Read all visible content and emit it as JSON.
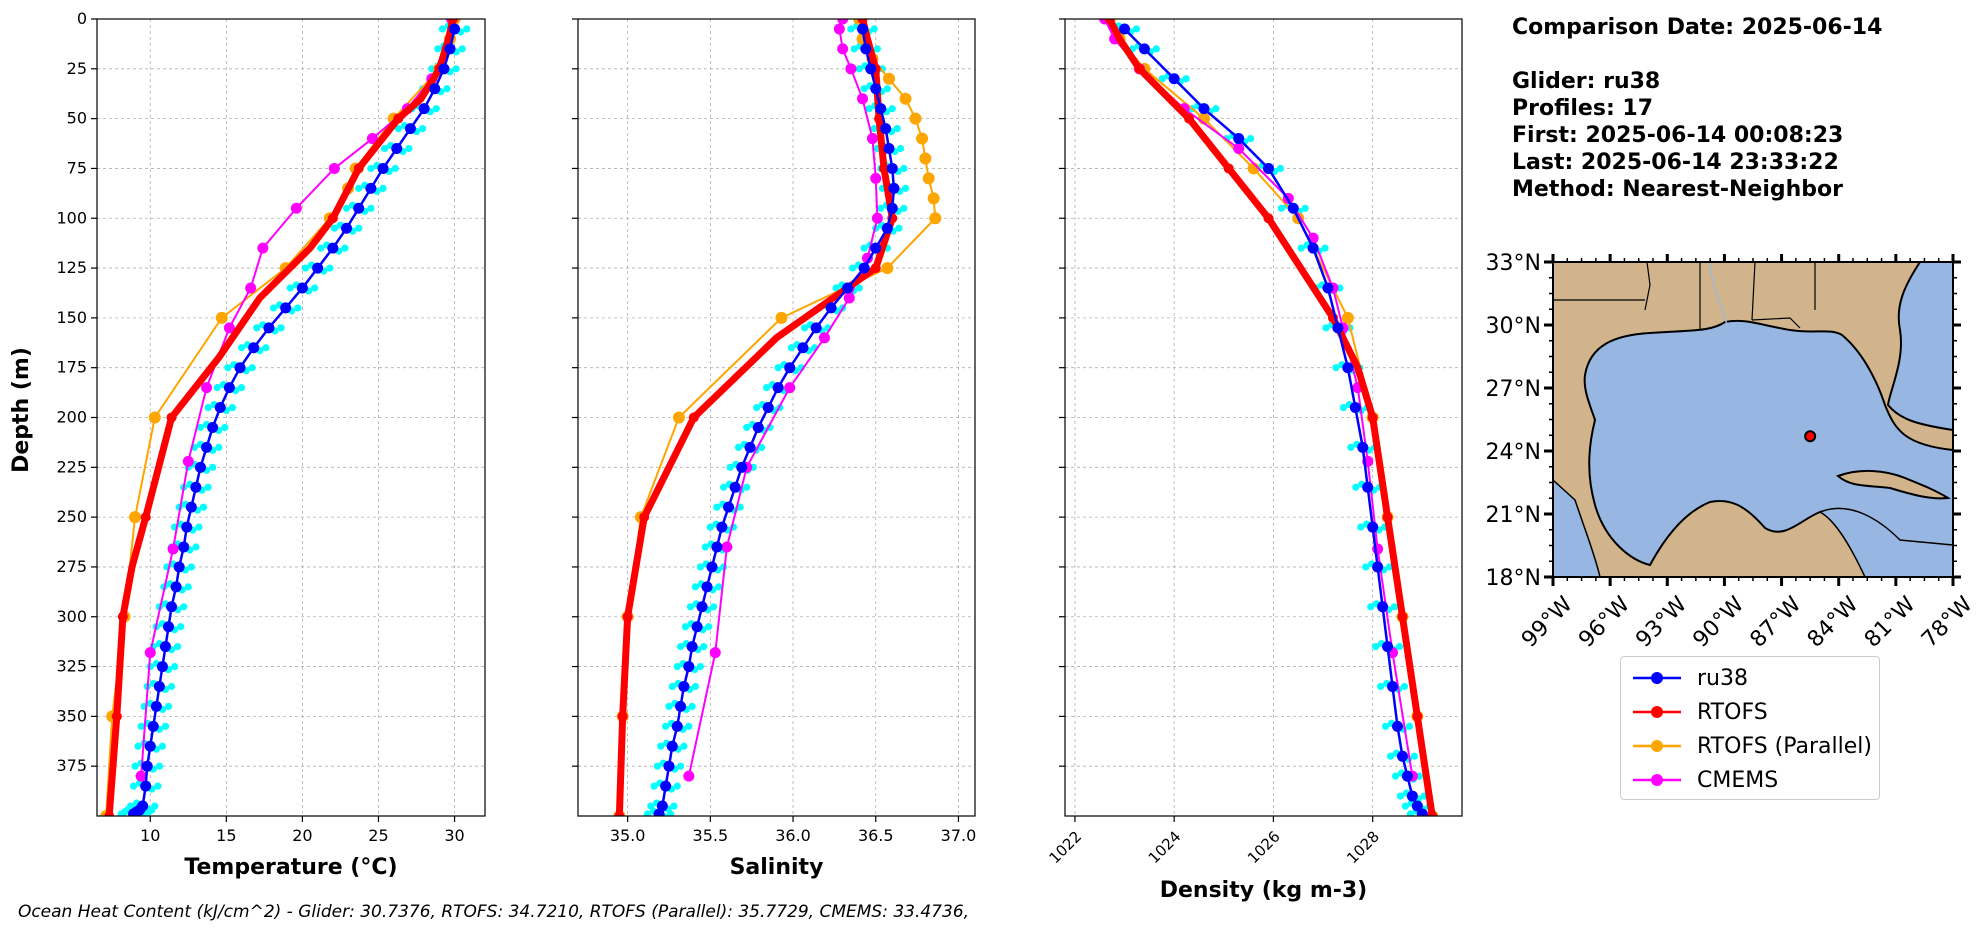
{
  "info": {
    "comparison_date": "Comparison Date: 2025-06-14",
    "glider": "Glider: ru38",
    "profiles": "Profiles: 17",
    "first": "First: 2025-06-14 00:08:23",
    "last": "Last: 2025-06-14 23:33:22",
    "method": "Method: Nearest-Neighbor"
  },
  "footer": "Ocean Heat Content (kJ/cm^2) - Glider: 30.7376,  RTOFS: 34.7210,  RTOFS (Parallel): 35.7729,  CMEMS: 33.4736,",
  "colors": {
    "glider": "#0000ff",
    "glider_points": "#00ffff",
    "rtofs": "#ff0000",
    "rtofs_parallel": "#ffa500",
    "cmems": "#ff00ff",
    "land": "#d2b48c",
    "ocean": "#97b6e1",
    "grid": "#b0b0b0"
  },
  "legend": [
    {
      "label": "ru38",
      "color": "#0000ff"
    },
    {
      "label": "RTOFS",
      "color": "#ff0000"
    },
    {
      "label": "RTOFS (Parallel)",
      "color": "#ffa500"
    },
    {
      "label": "CMEMS",
      "color": "#ff00ff"
    }
  ],
  "chart_data": [
    {
      "type": "line",
      "xlabel": "Temperature (°C)",
      "ylabel": "Depth (m)",
      "xlim": [
        6.5,
        32
      ],
      "ylim": [
        400,
        0
      ],
      "xticks": [
        10,
        15,
        20,
        25,
        30
      ],
      "yticks": [
        0,
        25,
        50,
        75,
        100,
        125,
        150,
        175,
        200,
        225,
        250,
        275,
        300,
        325,
        350,
        375
      ],
      "grid": true,
      "series": [
        {
          "name": "ru38",
          "x": [
            30.0,
            29.7,
            29.3,
            28.7,
            28.0,
            27.1,
            26.2,
            25.3,
            24.5,
            23.7,
            22.9,
            22.0,
            21.0,
            20.0,
            18.9,
            17.8,
            16.8,
            15.9,
            15.2,
            14.6,
            14.1,
            13.7,
            13.3,
            13.0,
            12.7,
            12.4,
            12.2,
            11.9,
            11.7,
            11.4,
            11.2,
            11.0,
            10.8,
            10.6,
            10.4,
            10.2,
            10.0,
            9.8,
            9.7,
            9.5,
            9.3,
            9.1,
            8.9
          ],
          "y": [
            5,
            15,
            25,
            35,
            45,
            55,
            65,
            75,
            85,
            95,
            105,
            115,
            125,
            135,
            145,
            155,
            165,
            175,
            185,
            195,
            205,
            215,
            225,
            235,
            245,
            255,
            265,
            275,
            285,
            295,
            305,
            315,
            325,
            335,
            345,
            355,
            365,
            375,
            385,
            395,
            397,
            398,
            399
          ]
        },
        {
          "name": "RTOFS",
          "x": [
            29.9,
            29.6,
            29.0,
            27.8,
            26.3,
            23.7,
            22.0,
            20.5,
            17.2,
            14.5,
            11.4,
            9.7,
            8.8,
            8.2,
            7.8,
            7.3
          ],
          "y": [
            0,
            10,
            25,
            40,
            50,
            75,
            100,
            115,
            140,
            170,
            200,
            250,
            275,
            300,
            350,
            400
          ]
        },
        {
          "name": "RTOFS (Parallel)",
          "x": [
            30.0,
            29.7,
            29.0,
            26.0,
            23.5,
            23.0,
            21.8,
            18.9,
            14.7,
            10.3,
            9.0,
            8.3,
            7.5,
            7.1
          ],
          "y": [
            0,
            10,
            25,
            50,
            75,
            85,
            100,
            125,
            150,
            200,
            250,
            300,
            350,
            400
          ]
        },
        {
          "name": "CMEMS",
          "x": [
            29.8,
            29.5,
            28.5,
            26.9,
            24.6,
            22.1,
            19.6,
            17.4,
            16.6,
            15.2,
            13.7,
            12.5,
            11.5,
            10.0,
            9.4
          ],
          "y": [
            0,
            15,
            30,
            45,
            60,
            75,
            95,
            115,
            135,
            155,
            185,
            222,
            266,
            318,
            380
          ]
        }
      ]
    },
    {
      "type": "line",
      "xlabel": "Salinity",
      "xlim": [
        34.7,
        37.1
      ],
      "ylim": [
        400,
        0
      ],
      "xticks": [
        35.0,
        35.5,
        36.0,
        36.5,
        37.0
      ],
      "grid": true,
      "series": [
        {
          "name": "ru38",
          "x": [
            36.42,
            36.44,
            36.47,
            36.5,
            36.53,
            36.56,
            36.58,
            36.6,
            36.61,
            36.6,
            36.57,
            36.5,
            36.43,
            36.33,
            36.23,
            36.14,
            36.06,
            35.98,
            35.91,
            35.85,
            35.79,
            35.74,
            35.69,
            35.65,
            35.61,
            35.57,
            35.54,
            35.51,
            35.48,
            35.45,
            35.42,
            35.39,
            35.37,
            35.34,
            35.32,
            35.3,
            35.27,
            35.25,
            35.23,
            35.21,
            35.19
          ],
          "y": [
            5,
            15,
            25,
            35,
            45,
            55,
            65,
            75,
            85,
            95,
            105,
            115,
            125,
            135,
            145,
            155,
            165,
            175,
            185,
            195,
            205,
            215,
            225,
            235,
            245,
            255,
            265,
            275,
            285,
            295,
            305,
            315,
            325,
            335,
            345,
            355,
            365,
            375,
            385,
            395,
            399
          ]
        },
        {
          "name": "RTOFS",
          "x": [
            36.42,
            36.45,
            36.5,
            36.52,
            36.55,
            36.6,
            36.5,
            35.9,
            35.4,
            35.1,
            35.0,
            34.97,
            34.95
          ],
          "y": [
            0,
            10,
            25,
            50,
            75,
            100,
            125,
            160,
            200,
            250,
            300,
            350,
            400
          ]
        },
        {
          "name": "RTOFS (Parallel)",
          "x": [
            36.4,
            36.42,
            36.48,
            36.58,
            36.68,
            36.74,
            36.78,
            36.8,
            36.82,
            36.85,
            36.86,
            36.57,
            35.93,
            35.31,
            35.08,
            35.0,
            34.97,
            34.95
          ],
          "y": [
            0,
            10,
            20,
            30,
            40,
            50,
            60,
            70,
            80,
            90,
            100,
            125,
            150,
            200,
            250,
            300,
            350,
            400
          ]
        },
        {
          "name": "CMEMS",
          "x": [
            36.3,
            36.28,
            36.3,
            36.35,
            36.42,
            36.48,
            36.5,
            36.51,
            36.45,
            36.34,
            36.19,
            35.98,
            35.72,
            35.6,
            35.53,
            35.37
          ],
          "y": [
            0,
            5,
            15,
            25,
            40,
            60,
            80,
            100,
            120,
            140,
            160,
            185,
            225,
            265,
            318,
            380
          ]
        }
      ]
    },
    {
      "type": "line",
      "xlabel": "Density (kg m-3)",
      "xlim": [
        1021.8,
        1029.8
      ],
      "ylim": [
        400,
        0
      ],
      "xticks": [
        1022,
        1024,
        1026,
        1028
      ],
      "grid": true,
      "series": [
        {
          "name": "ru38",
          "x": [
            1023.0,
            1023.4,
            1024.0,
            1024.6,
            1025.3,
            1025.9,
            1026.4,
            1026.8,
            1027.1,
            1027.3,
            1027.5,
            1027.65,
            1027.8,
            1027.9,
            1028.0,
            1028.1,
            1028.2,
            1028.3,
            1028.4,
            1028.5,
            1028.6,
            1028.7,
            1028.8,
            1028.9,
            1029.0
          ],
          "y": [
            5,
            15,
            30,
            45,
            60,
            75,
            95,
            115,
            135,
            155,
            175,
            195,
            215,
            235,
            255,
            275,
            295,
            315,
            335,
            355,
            370,
            380,
            390,
            395,
            399
          ]
        },
        {
          "name": "RTOFS",
          "x": [
            1022.7,
            1022.9,
            1023.3,
            1024.3,
            1025.1,
            1025.9,
            1027.2,
            1027.7,
            1028.0,
            1028.3,
            1028.6,
            1028.9,
            1029.2
          ],
          "y": [
            0,
            10,
            25,
            50,
            75,
            100,
            150,
            175,
            200,
            250,
            300,
            350,
            400
          ]
        },
        {
          "name": "RTOFS (Parallel)",
          "x": [
            1022.7,
            1022.9,
            1023.4,
            1024.6,
            1025.6,
            1026.5,
            1027.5,
            1028.0,
            1028.3,
            1028.6,
            1028.9,
            1029.2
          ],
          "y": [
            0,
            10,
            25,
            50,
            75,
            100,
            150,
            200,
            250,
            300,
            350,
            400
          ]
        },
        {
          "name": "CMEMS",
          "x": [
            1022.6,
            1022.8,
            1023.3,
            1024.2,
            1025.3,
            1026.3,
            1026.8,
            1027.2,
            1027.4,
            1027.7,
            1027.9,
            1028.1,
            1028.4,
            1028.8
          ],
          "y": [
            0,
            10,
            25,
            45,
            65,
            90,
            110,
            135,
            155,
            185,
            222,
            266,
            318,
            380
          ]
        }
      ]
    }
  ],
  "map": {
    "lat_ticks": [
      "33°N",
      "30°N",
      "27°N",
      "24°N",
      "21°N",
      "18°N"
    ],
    "lon_ticks": [
      "99°W",
      "96°W",
      "93°W",
      "90°W",
      "87°W",
      "84°W",
      "81°W",
      "78°W"
    ],
    "lon_range": [
      -99,
      -78
    ],
    "lat_range": [
      18,
      33
    ],
    "glider_position": {
      "lon": -85.5,
      "lat": 24.7
    }
  }
}
